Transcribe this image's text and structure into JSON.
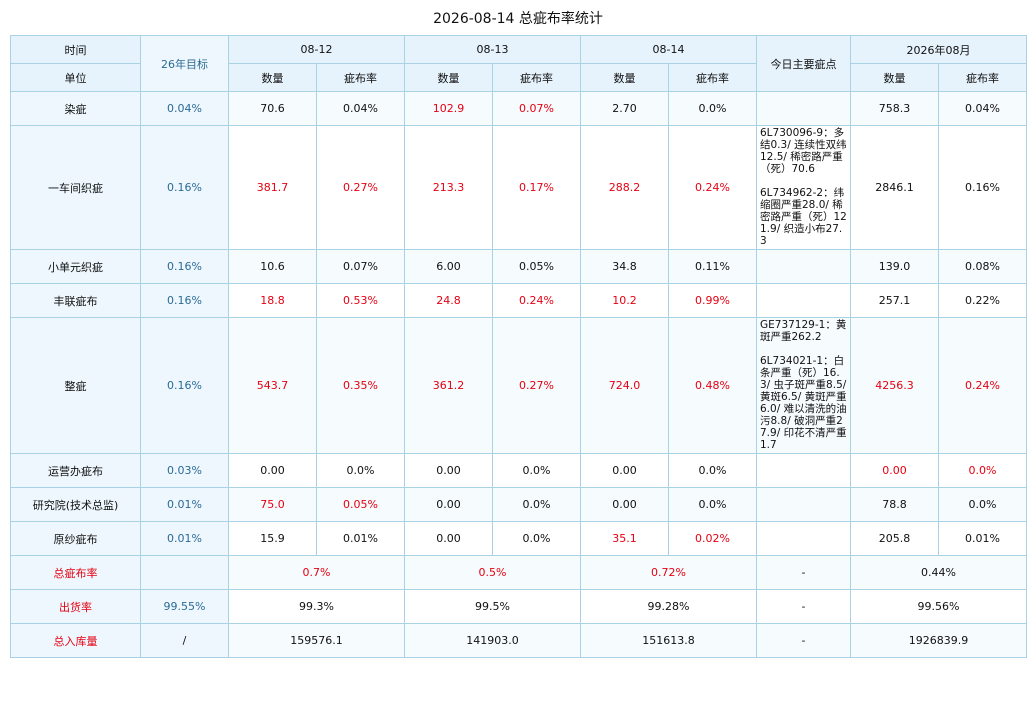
{
  "title": "2026-08-14 总疵布率统计",
  "header": {
    "time": "时间",
    "unit": "单位",
    "target": "26年目标",
    "dates": [
      "08-12",
      "08-13",
      "08-14"
    ],
    "main": "今日主要疵点",
    "month": "2026年08月",
    "subheaders": [
      "数量",
      "疵布率",
      "数量",
      "疵布率",
      "数量",
      "疵布率",
      "数量",
      "疵布率"
    ]
  },
  "rows": [
    {
      "label": "染疵",
      "target": "0.04%",
      "cells": [
        "70.6",
        "0.04%",
        "102.9",
        "0.07%",
        "2.70",
        "0.0%"
      ],
      "main": null,
      "month": [
        "758.3",
        "0.04%"
      ]
    },
    {
      "label": "一车间织疵",
      "target": "0.16%",
      "cells": [
        "381.7",
        "0.27%",
        "213.3",
        "0.17%",
        "288.2",
        "0.24%"
      ],
      "main": [
        "6L730096-9：多结0.3/ 连续性双纬12.5/ 稀密路严重（死）70.6",
        "6L734962-2：纬缩圈严重28.0/ 稀密路严重（死）121.9/ 织造小布27.3"
      ],
      "month": [
        "2846.1",
        "0.16%"
      ]
    },
    {
      "label": "小单元织疵",
      "target": "0.16%",
      "cells": [
        "10.6",
        "0.07%",
        "6.00",
        "0.05%",
        "34.8",
        "0.11%"
      ],
      "main": null,
      "month": [
        "139.0",
        "0.08%"
      ]
    },
    {
      "label": "丰联疵布",
      "target": "0.16%",
      "cells": [
        "18.8",
        "0.53%",
        "24.8",
        "0.24%",
        "10.2",
        "0.99%"
      ],
      "main": null,
      "month": [
        "257.1",
        "0.22%"
      ]
    },
    {
      "label": "整疵",
      "target": "0.16%",
      "cells": [
        "543.7",
        "0.35%",
        "361.2",
        "0.27%",
        "724.0",
        "0.48%"
      ],
      "main": [
        "GE737129-1：黄斑严重262.2",
        "6L734021-1：白条严重（死）16.3/ 虫子斑严重8.5/ 黄斑6.5/ 黄斑严重6.0/ 难以清洗的油污8.8/ 破洞严重27.9/ 印花不清严重1.7"
      ],
      "month": [
        "4256.3",
        "0.24%"
      ]
    },
    {
      "label": "运营办疵布",
      "target": "0.03%",
      "cells": [
        "0.00",
        "0.0%",
        "0.00",
        "0.0%",
        "0.00",
        "0.0%"
      ],
      "main": null,
      "month": [
        "0.00",
        "0.0%"
      ]
    },
    {
      "label": "研究院(技术总监)",
      "target": "0.01%",
      "cells": [
        "75.0",
        "0.05%",
        "0.00",
        "0.0%",
        "0.00",
        "0.0%"
      ],
      "main": null,
      "month": [
        "78.8",
        "0.0%"
      ]
    },
    {
      "label": "原纱疵布",
      "target": "0.01%",
      "cells": [
        "15.9",
        "0.01%",
        "0.00",
        "0.0%",
        "35.1",
        "0.02%"
      ],
      "main": null,
      "month": [
        "205.8",
        "0.01%"
      ]
    }
  ],
  "summary": [
    {
      "label": "总疵布率",
      "target": null,
      "values": [
        "0.7%",
        "0.5%",
        "0.72%"
      ],
      "main": "-",
      "month": "0.44%"
    },
    {
      "label": "出货率",
      "target": "99.55%",
      "values": [
        "99.3%",
        "99.5%",
        "99.28%"
      ],
      "main": "-",
      "month": "99.56%"
    },
    {
      "label": "总入库量",
      "target": "/",
      "values": [
        "159576.1",
        "141903.0",
        "151613.8"
      ],
      "main": "-",
      "month": "1926839.9"
    }
  ]
}
